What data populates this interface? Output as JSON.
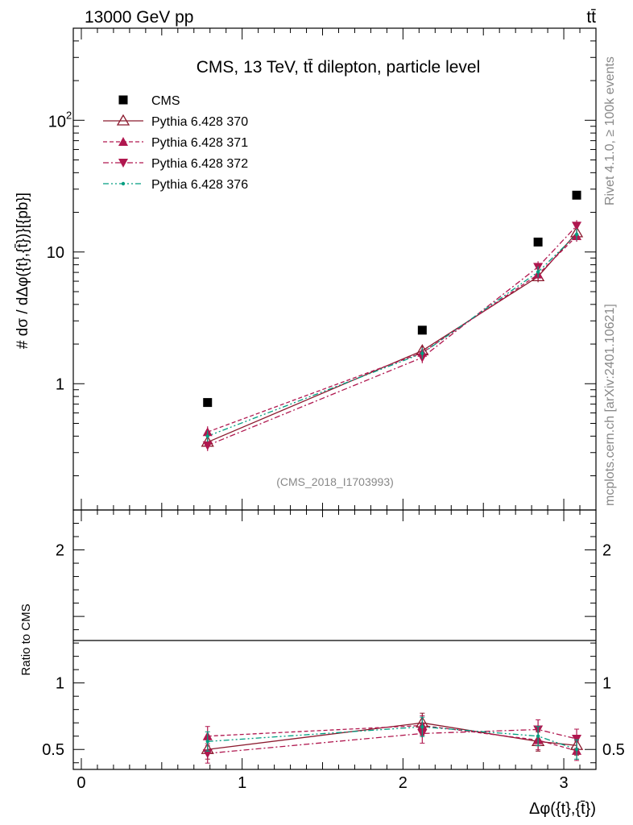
{
  "header": {
    "left": "13000 GeV pp",
    "right": "tt̄"
  },
  "side_labels": {
    "rivet": "Rivet 4.1.0, ≥ 100k events",
    "mcplots": "mcplots.cern.ch [arXiv:2401.10621]"
  },
  "colors": {
    "data": "#000000",
    "pythia370": "#8b1a2e",
    "pythia371": "#b0174f",
    "pythia372": "#b0174f",
    "pythia376": "#009e80"
  },
  "chart_data": [
    {
      "type": "scatter",
      "title": "CMS, 13 TeV, tt̄ dilepton, particle level",
      "ylabel": "# dσ / dΔφ({t},{t̄})}[{pb}]",
      "yscale": "log",
      "ylim": [
        0.11,
        500
      ],
      "xlim": [
        -0.05,
        3.2
      ],
      "ytick_labels": [
        {
          "value": 1,
          "label": "1"
        },
        {
          "value": 10,
          "label": "10"
        },
        {
          "value": 100,
          "label": "10²"
        }
      ],
      "watermark": "(CMS_2018_I1703993)",
      "x": [
        0.785,
        2.12,
        2.84,
        3.08
      ],
      "series": [
        {
          "name": "CMS",
          "marker": "square",
          "values": [
            0.72,
            2.55,
            11.9,
            27.0
          ]
        },
        {
          "name": "Pythia 6.428 370",
          "marker": "triangle-up-open",
          "line": "solid",
          "values": [
            0.36,
            1.78,
            6.5,
            14.0
          ]
        },
        {
          "name": "Pythia 6.428 371",
          "marker": "triangle-up",
          "line": "dashed",
          "values": [
            0.43,
            1.72,
            6.75,
            13.2
          ]
        },
        {
          "name": "Pythia 6.428 372",
          "marker": "triangle-down",
          "line": "dashdot",
          "values": [
            0.34,
            1.58,
            7.7,
            15.8
          ]
        },
        {
          "name": "Pythia 6.428 376",
          "marker": "dot",
          "line": "dashdotdot",
          "values": [
            0.4,
            1.7,
            7.05,
            13.6
          ]
        }
      ]
    },
    {
      "type": "line",
      "ylabel": "Ratio to CMS",
      "xlabel": "Δφ({t},{t̄})",
      "ylim": [
        0.35,
        2.3
      ],
      "xlim": [
        -0.05,
        3.2
      ],
      "ytick_labels": [
        {
          "value": 0.5,
          "label": "0.5"
        },
        {
          "value": 1,
          "label": "1"
        },
        {
          "value": 2,
          "label": "2"
        }
      ],
      "xtick_labels": [
        {
          "value": 0,
          "label": "0"
        },
        {
          "value": 1,
          "label": "1"
        },
        {
          "value": 2,
          "label": "2"
        },
        {
          "value": 3,
          "label": "3"
        }
      ],
      "x": [
        0.785,
        2.12,
        2.84,
        3.08
      ],
      "series": [
        {
          "name": "Pythia 6.428 370",
          "values": [
            0.5,
            0.7,
            0.56,
            0.53
          ]
        },
        {
          "name": "Pythia 6.428 371",
          "values": [
            0.6,
            0.68,
            0.57,
            0.49
          ]
        },
        {
          "name": "Pythia 6.428 372",
          "values": [
            0.47,
            0.62,
            0.65,
            0.58
          ]
        },
        {
          "name": "Pythia 6.428 376",
          "values": [
            0.56,
            0.67,
            0.6,
            0.5
          ]
        }
      ]
    }
  ]
}
